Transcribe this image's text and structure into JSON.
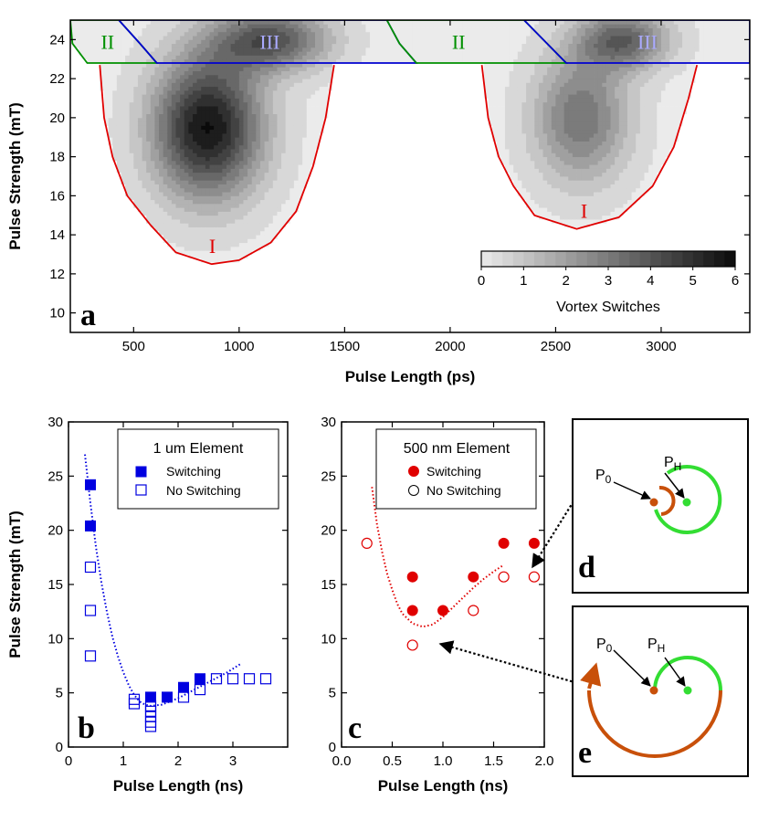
{
  "chart_data": [
    {
      "panel": "a",
      "type": "heatmap",
      "xlabel": "Pulse Length (ps)",
      "ylabel": "Pulse Strength (mT)",
      "xlim": [
        200,
        3420
      ],
      "ylim": [
        9,
        25
      ],
      "xticks": [
        500,
        1000,
        1500,
        2000,
        2500,
        3000
      ],
      "yticks": [
        10,
        12,
        14,
        16,
        18,
        20,
        22,
        24
      ],
      "colorbar": {
        "label": "Vortex Switches",
        "min": 0,
        "max": 6,
        "ticks": [
          0,
          1,
          2,
          3,
          4,
          5,
          6
        ],
        "placement": "bottom-right"
      },
      "regions": [
        {
          "label": "I",
          "color": "#e00000",
          "boundary": [
            [
              340,
              22.7
            ],
            [
              360,
              20
            ],
            [
              400,
              18
            ],
            [
              470,
              16
            ],
            [
              580,
              14.5
            ],
            [
              700,
              13.1
            ],
            [
              870,
              12.5
            ],
            [
              1000,
              12.7
            ],
            [
              1150,
              13.6
            ],
            [
              1270,
              15.2
            ],
            [
              1350,
              17.5
            ],
            [
              1410,
              20
            ],
            [
              1450,
              22.7
            ]
          ]
        },
        {
          "label": "I",
          "color": "#e00000",
          "boundary": [
            [
              2150,
              22.7
            ],
            [
              2180,
              20
            ],
            [
              2230,
              18
            ],
            [
              2300,
              16.5
            ],
            [
              2400,
              15
            ],
            [
              2600,
              14.3
            ],
            [
              2800,
              14.9
            ],
            [
              2960,
              16.5
            ],
            [
              3060,
              18.5
            ],
            [
              3130,
              21
            ],
            [
              3170,
              22.7
            ]
          ]
        },
        {
          "label": "II",
          "color": "#009000",
          "boundary": [
            [
              200,
              25
            ],
            [
              210,
              23.8
            ],
            [
              280,
              22.8
            ],
            [
              610,
              22.8
            ],
            [
              530,
              23.8
            ],
            [
              430,
              25
            ]
          ]
        },
        {
          "label": "III",
          "color": "#0000d0",
          "boundary": [
            [
              430,
              25
            ],
            [
              530,
              23.8
            ],
            [
              610,
              22.8
            ],
            [
              1840,
              22.8
            ],
            [
              1760,
              23.8
            ],
            [
              1700,
              25
            ]
          ]
        },
        {
          "label": "II",
          "color": "#009000",
          "boundary": [
            [
              1700,
              25
            ],
            [
              1760,
              23.8
            ],
            [
              1840,
              22.8
            ],
            [
              2550,
              22.8
            ],
            [
              2350,
              25
            ]
          ]
        },
        {
          "label": "III",
          "color": "#0000d0",
          "boundary": [
            [
              2350,
              25
            ],
            [
              2550,
              22.8
            ],
            [
              3420,
              22.8
            ],
            [
              3420,
              25
            ]
          ]
        }
      ],
      "intensity_blobs": [
        {
          "x": 850,
          "y": 19.5,
          "sx": 260,
          "sy": 3.6,
          "peak": 5.8
        },
        {
          "x": 1150,
          "y": 24.0,
          "sx": 280,
          "sy": 1.6,
          "peak": 4.0
        },
        {
          "x": 2620,
          "y": 20.0,
          "sx": 230,
          "sy": 3.3,
          "peak": 3.2
        },
        {
          "x": 2820,
          "y": 24.0,
          "sx": 220,
          "sy": 1.5,
          "peak": 3.6
        }
      ]
    },
    {
      "panel": "b",
      "type": "scatter",
      "xlabel": "Pulse Length (ns)",
      "ylabel": "Pulse Strength (mT)",
      "xlim": [
        0,
        4
      ],
      "ylim": [
        0,
        30
      ],
      "xticks": [
        0,
        1,
        2,
        3
      ],
      "yticks": [
        0,
        5,
        10,
        15,
        20,
        25,
        30
      ],
      "legend": {
        "title": "1 um Element",
        "placement": "top-right"
      },
      "series": [
        {
          "name": "Switching",
          "marker": "filled-square",
          "color": "#0000e0",
          "points": [
            [
              0.4,
              24.2
            ],
            [
              0.4,
              20.4
            ],
            [
              1.5,
              4.6
            ],
            [
              1.8,
              4.6
            ],
            [
              2.1,
              5.5
            ],
            [
              2.4,
              6.3
            ]
          ]
        },
        {
          "name": "No Switching",
          "marker": "open-square",
          "color": "#0000e0",
          "points": [
            [
              0.4,
              16.6
            ],
            [
              0.4,
              12.6
            ],
            [
              0.4,
              8.4
            ],
            [
              1.2,
              4.4
            ],
            [
              1.2,
              4.0
            ],
            [
              1.5,
              3.8
            ],
            [
              1.5,
              3.3
            ],
            [
              1.5,
              2.8
            ],
            [
              1.5,
              2.3
            ],
            [
              1.5,
              1.9
            ],
            [
              2.1,
              4.6
            ],
            [
              2.4,
              5.3
            ],
            [
              2.7,
              6.3
            ],
            [
              3.0,
              6.3
            ],
            [
              3.3,
              6.3
            ],
            [
              3.6,
              6.3
            ]
          ]
        }
      ],
      "fit": {
        "style": "dotted",
        "color": "#0000e0",
        "points": [
          [
            0.3,
            27
          ],
          [
            0.4,
            22.5
          ],
          [
            0.5,
            18.5
          ],
          [
            0.6,
            15.2
          ],
          [
            0.7,
            12.5
          ],
          [
            0.8,
            10.2
          ],
          [
            0.9,
            8.4
          ],
          [
            1.0,
            6.9
          ],
          [
            1.1,
            5.7
          ],
          [
            1.2,
            4.8
          ],
          [
            1.3,
            4.2
          ],
          [
            1.4,
            3.9
          ],
          [
            1.5,
            3.8
          ],
          [
            1.7,
            3.9
          ],
          [
            2.0,
            4.5
          ],
          [
            2.3,
            5.3
          ],
          [
            2.6,
            6.1
          ],
          [
            2.9,
            6.9
          ],
          [
            3.15,
            7.7
          ]
        ]
      }
    },
    {
      "panel": "c",
      "type": "scatter",
      "xlabel": "Pulse Length (ns)",
      "ylabel": "",
      "xlim": [
        0,
        2
      ],
      "ylim": [
        0,
        30
      ],
      "xticks": [
        0.0,
        0.5,
        1.0,
        1.5,
        2.0
      ],
      "yticks": [
        0,
        5,
        10,
        15,
        20,
        25,
        30
      ],
      "legend": {
        "title": "500 nm Element",
        "placement": "top-right"
      },
      "series": [
        {
          "name": "Switching",
          "marker": "filled-circle",
          "color": "#e00000",
          "points": [
            [
              0.7,
              15.7
            ],
            [
              0.7,
              12.6
            ],
            [
              1.0,
              12.6
            ],
            [
              1.3,
              15.7
            ],
            [
              1.6,
              18.8
            ],
            [
              1.9,
              18.8
            ]
          ]
        },
        {
          "name": "No Switching",
          "marker": "open-circle",
          "color": "#e00000",
          "points": [
            [
              0.25,
              18.8
            ],
            [
              0.7,
              9.4
            ],
            [
              1.3,
              12.6
            ],
            [
              1.6,
              15.7
            ],
            [
              1.9,
              15.7
            ]
          ]
        }
      ],
      "fit": {
        "style": "dotted",
        "color": "#e00000",
        "points": [
          [
            0.3,
            24
          ],
          [
            0.35,
            20.5
          ],
          [
            0.4,
            18
          ],
          [
            0.45,
            16
          ],
          [
            0.5,
            14.5
          ],
          [
            0.55,
            13.2
          ],
          [
            0.6,
            12.3
          ],
          [
            0.7,
            11.4
          ],
          [
            0.8,
            11.1
          ],
          [
            0.9,
            11.3
          ],
          [
            1.0,
            12.0
          ],
          [
            1.1,
            12.9
          ],
          [
            1.2,
            13.8
          ],
          [
            1.3,
            14.7
          ],
          [
            1.4,
            15.5
          ],
          [
            1.5,
            16.2
          ],
          [
            1.6,
            16.8
          ]
        ]
      }
    }
  ],
  "insets": [
    {
      "panel": "d",
      "label_p0": "P0",
      "label_ph": "PH",
      "p0_color": "#c8500a",
      "ph_color": "#33dd33"
    },
    {
      "panel": "e",
      "label_p0": "P0",
      "label_ph": "PH",
      "p0_color": "#c8500a",
      "ph_color": "#33dd33"
    }
  ]
}
